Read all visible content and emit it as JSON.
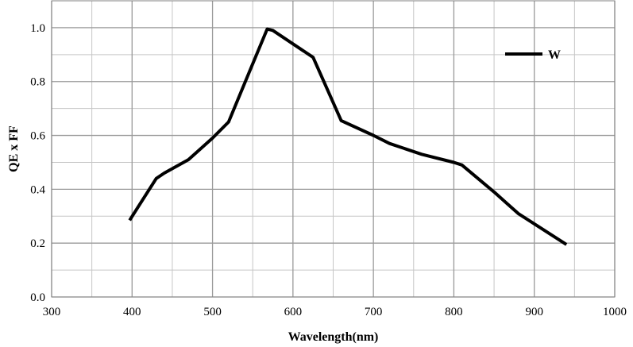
{
  "chart_data": {
    "type": "line",
    "title": "",
    "xlabel": "Wavelength(nm)",
    "ylabel": "QE x FF",
    "xlim": [
      300,
      1000
    ],
    "ylim": [
      0.0,
      1.1
    ],
    "x_major_ticks": [
      300,
      400,
      500,
      600,
      700,
      800,
      900,
      1000
    ],
    "x_minor_ticks": [
      350,
      450,
      550,
      650,
      750,
      850,
      950
    ],
    "y_major_ticks": [
      0.0,
      0.2,
      0.4,
      0.6,
      0.8,
      1.0
    ],
    "y_minor_ticks": [
      0.1,
      0.3,
      0.5,
      0.7,
      0.9
    ],
    "x_tick_labels": [
      "300",
      "400",
      "500",
      "600",
      "700",
      "800",
      "900",
      "1000"
    ],
    "y_tick_labels": [
      "0.0",
      "0.2",
      "0.4",
      "0.6",
      "0.8",
      "1.0"
    ],
    "grid": true,
    "legend_position": "top-right",
    "series": [
      {
        "name": "W",
        "color": "#000000",
        "x": [
          397,
          430,
          440,
          470,
          500,
          520,
          545,
          568,
          575,
          600,
          625,
          660,
          700,
          720,
          760,
          800,
          810,
          850,
          880,
          940
        ],
        "y": [
          0.285,
          0.44,
          0.46,
          0.51,
          0.59,
          0.65,
          0.83,
          0.995,
          0.99,
          0.94,
          0.89,
          0.655,
          0.6,
          0.57,
          0.53,
          0.5,
          0.49,
          0.39,
          0.31,
          0.195
        ]
      }
    ]
  }
}
